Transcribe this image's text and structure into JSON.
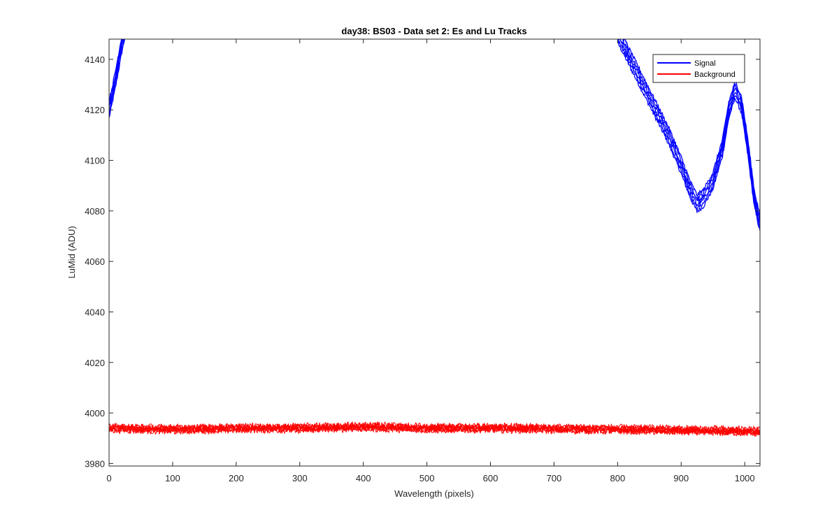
{
  "chart_data": {
    "type": "line",
    "title": "day38: BS03 - Data set 2: Es and Lu Tracks",
    "xlabel": "Wavelength (pixels)",
    "ylabel": "LuMid (ADU)",
    "xlim": [
      0,
      1024
    ],
    "ylim": [
      3979,
      4148
    ],
    "xticks": [
      0,
      100,
      200,
      300,
      400,
      500,
      600,
      700,
      800,
      900,
      1000
    ],
    "yticks": [
      3980,
      4000,
      4020,
      4040,
      4060,
      4080,
      4100,
      4120,
      4140
    ],
    "grid": false,
    "legend": {
      "position": "top-right",
      "entries": [
        "Signal",
        "Background"
      ]
    },
    "colors": {
      "Signal": "#0000ff",
      "Background": "#ff0000",
      "axes": "#262626"
    },
    "series": [
      {
        "name": "Signal",
        "color": "#0000ff",
        "tracks": 6,
        "x": [
          0,
          10,
          20,
          25,
          800,
          820,
          840,
          860,
          880,
          900,
          915,
          925,
          935,
          950,
          965,
          975,
          985,
          995,
          1005,
          1015,
          1024
        ],
        "y": [
          4120,
          4132,
          4146,
          4152,
          4150,
          4140,
          4130,
          4120,
          4110,
          4098,
          4088,
          4083,
          4085,
          4092,
          4105,
          4120,
          4128,
          4122,
          4105,
          4085,
          4075
        ]
      },
      {
        "name": "Background",
        "color": "#ff0000",
        "tracks": 6,
        "x": [
          0,
          100,
          200,
          300,
          400,
          500,
          600,
          700,
          800,
          900,
          1000,
          1024
        ],
        "y": [
          3994,
          3993.5,
          3994,
          3994,
          3994.5,
          3994,
          3994,
          3993.8,
          3993.5,
          3993.2,
          3992.8,
          3992.5
        ]
      }
    ]
  }
}
